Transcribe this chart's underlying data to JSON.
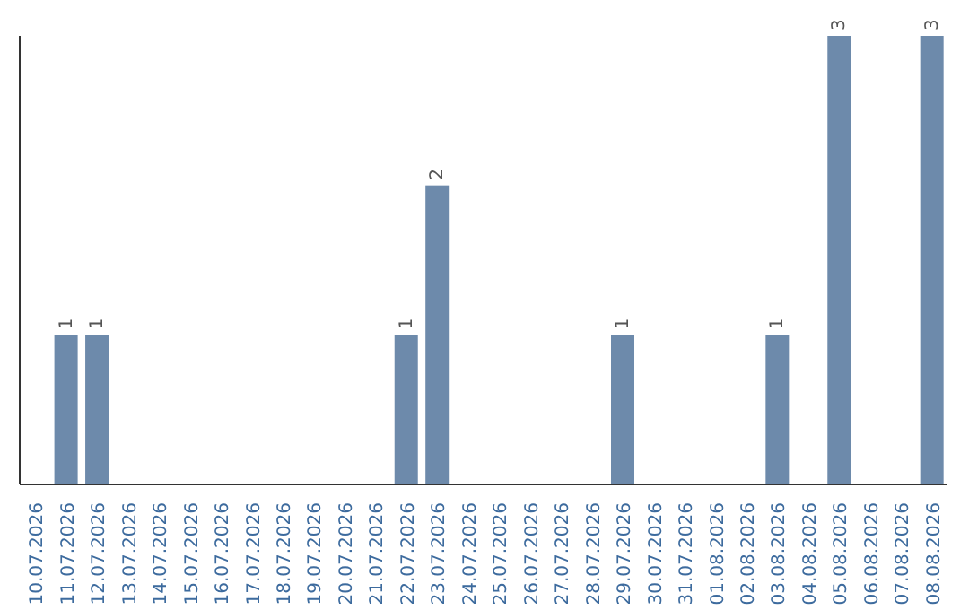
{
  "chart_data": {
    "type": "bar",
    "categories": [
      "10.07.2026",
      "11.07.2026",
      "12.07.2026",
      "13.07.2026",
      "14.07.2026",
      "15.07.2026",
      "16.07.2026",
      "17.07.2026",
      "18.07.2026",
      "19.07.2026",
      "20.07.2026",
      "21.07.2026",
      "22.07.2026",
      "23.07.2026",
      "24.07.2026",
      "25.07.2026",
      "26.07.2026",
      "27.07.2026",
      "28.07.2026",
      "29.07.2026",
      "30.07.2026",
      "31.07.2026",
      "01.08.2026",
      "02.08.2026",
      "03.08.2026",
      "04.08.2026",
      "05.08.2026",
      "06.08.2026",
      "07.08.2026",
      "08.08.2026"
    ],
    "values": [
      0,
      1,
      1,
      0,
      0,
      0,
      0,
      0,
      0,
      0,
      0,
      0,
      1,
      2,
      0,
      0,
      0,
      0,
      0,
      1,
      0,
      0,
      0,
      0,
      1,
      0,
      3,
      0,
      0,
      3
    ],
    "value_labels": [
      null,
      "1",
      "1",
      null,
      null,
      null,
      null,
      null,
      null,
      null,
      null,
      null,
      "1",
      "2",
      null,
      null,
      null,
      null,
      null,
      "1",
      null,
      null,
      null,
      null,
      "1",
      null,
      "3",
      null,
      null,
      "3"
    ],
    "color": "#6d8aab"
  }
}
